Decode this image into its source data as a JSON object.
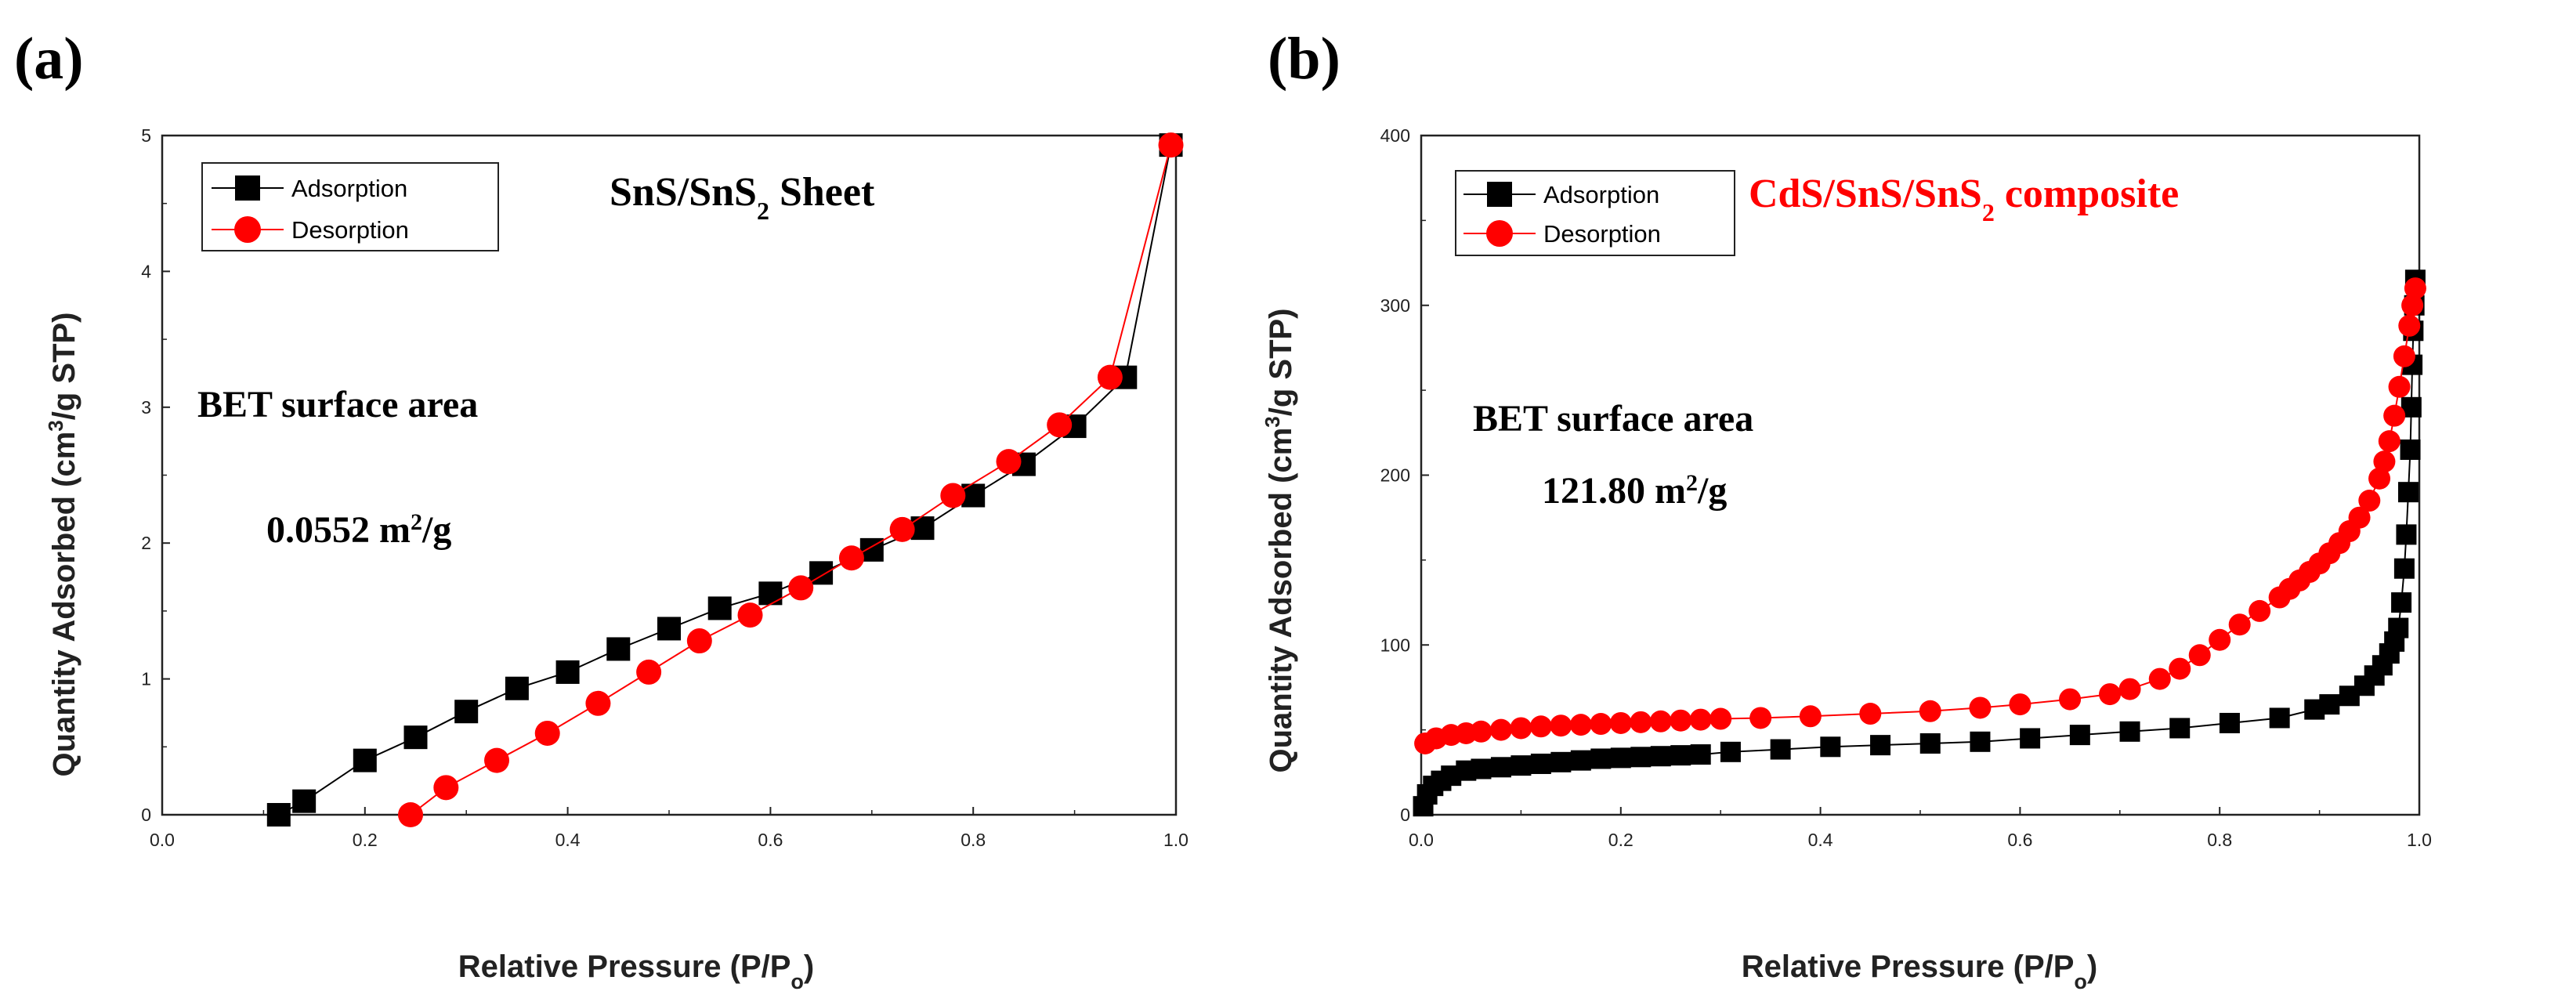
{
  "colors": {
    "adsorption": "#000000",
    "desorption": "#ff0000",
    "axis": "#222222"
  },
  "chart_data": [
    {
      "panel_label": "(a)",
      "type": "line",
      "title": "SnS/SnS2 Sheet",
      "title_main": "SnS/SnS",
      "title_sub": "2",
      "title_rest": " Sheet",
      "title_color": "#000000",
      "xlabel": "Relative Pressure (P/Po)",
      "xlabel_main": "Relative Pressure (P/P",
      "xlabel_sub": "o",
      "xlabel_end": ")",
      "ylabel": "Quantity Adsorbed (cm3/g STP)",
      "ylabel_main": "Quantity Adsorbed (cm",
      "ylabel_sup": "3",
      "ylabel_end": "/g STP)",
      "xlim": [
        0.0,
        1.0
      ],
      "ylim": [
        0,
        5
      ],
      "xticks": [
        "0.0",
        "0.2",
        "0.4",
        "0.6",
        "0.8",
        "1.0"
      ],
      "yticks": [
        "0",
        "1",
        "2",
        "3",
        "4",
        "5"
      ],
      "legend": [
        "Adsorption",
        "Desorption"
      ],
      "legend_position": "top-left",
      "annotation_line1": "BET surface area",
      "annotation_value": "0.0552 m",
      "annotation_sup": "2",
      "annotation_unit": "/g",
      "annotation_value_color": "#000000",
      "series": [
        {
          "name": "Adsorption",
          "x": [
            0.115,
            0.14,
            0.2,
            0.25,
            0.3,
            0.35,
            0.4,
            0.45,
            0.5,
            0.55,
            0.6,
            0.65,
            0.7,
            0.75,
            0.8,
            0.85,
            0.9,
            0.95,
            0.995
          ],
          "y": [
            0.0,
            0.1,
            0.4,
            0.57,
            0.76,
            0.93,
            1.05,
            1.22,
            1.37,
            1.52,
            1.63,
            1.78,
            1.95,
            2.11,
            2.35,
            2.58,
            2.86,
            3.22,
            4.93
          ]
        },
        {
          "name": "Desorption",
          "x": [
            0.245,
            0.28,
            0.33,
            0.38,
            0.43,
            0.48,
            0.53,
            0.58,
            0.63,
            0.68,
            0.73,
            0.78,
            0.835,
            0.885,
            0.935,
            0.995
          ],
          "y": [
            0.0,
            0.2,
            0.4,
            0.6,
            0.82,
            1.05,
            1.28,
            1.47,
            1.67,
            1.89,
            2.1,
            2.35,
            2.6,
            2.87,
            3.22,
            4.93
          ]
        }
      ]
    },
    {
      "panel_label": "(b)",
      "type": "line",
      "title": "CdS/SnS/SnS2 composite",
      "title_main": "CdS/SnS/SnS",
      "title_sub": "2",
      "title_rest": " composite",
      "title_color": "#ff0000",
      "xlabel": "Relative Pressure (P/Po)",
      "xlabel_main": "Relative Pressure (P/P",
      "xlabel_sub": "o",
      "xlabel_end": ")",
      "ylabel": "Quantity Adsorbed (cm3/g STP)",
      "ylabel_main": "Quantity Adsorbed (cm",
      "ylabel_sup": "3",
      "ylabel_end": "/g STP)",
      "xlim": [
        0.0,
        1.0
      ],
      "ylim": [
        0,
        400
      ],
      "xticks": [
        "0.0",
        "0.2",
        "0.4",
        "0.6",
        "0.8",
        "1.0"
      ],
      "yticks": [
        "0",
        "100",
        "200",
        "300",
        "400"
      ],
      "legend": [
        "Adsorption",
        "Desorption"
      ],
      "legend_position": "top-left",
      "annotation_line1": "BET surface area",
      "annotation_value": "121.80 m",
      "annotation_sup": "2",
      "annotation_unit": "/g",
      "annotation_value_color": "#ff0000",
      "series": [
        {
          "name": "Adsorption",
          "x": [
            0.002,
            0.006,
            0.012,
            0.02,
            0.03,
            0.045,
            0.06,
            0.08,
            0.1,
            0.12,
            0.14,
            0.16,
            0.18,
            0.2,
            0.22,
            0.24,
            0.26,
            0.28,
            0.31,
            0.36,
            0.41,
            0.46,
            0.51,
            0.56,
            0.61,
            0.66,
            0.71,
            0.76,
            0.81,
            0.86,
            0.895,
            0.91,
            0.93,
            0.945,
            0.955,
            0.963,
            0.97,
            0.975,
            0.979,
            0.982,
            0.985,
            0.987,
            0.989,
            0.991,
            0.992,
            0.993,
            0.994,
            0.995,
            0.996
          ],
          "y": [
            5,
            12,
            17,
            20,
            23,
            26,
            27,
            28,
            29,
            30,
            31,
            32,
            33,
            33.5,
            34,
            34.5,
            35,
            35.5,
            37,
            38.5,
            40,
            41,
            42,
            43,
            45,
            47,
            49,
            51,
            54,
            57,
            62,
            65,
            70,
            76,
            82,
            88,
            95,
            102,
            110,
            125,
            145,
            165,
            190,
            215,
            240,
            265,
            285,
            300,
            315
          ]
        },
        {
          "name": "Desorption",
          "x": [
            0.004,
            0.015,
            0.03,
            0.045,
            0.06,
            0.08,
            0.1,
            0.12,
            0.14,
            0.16,
            0.18,
            0.2,
            0.22,
            0.24,
            0.26,
            0.28,
            0.3,
            0.34,
            0.39,
            0.45,
            0.51,
            0.56,
            0.6,
            0.65,
            0.69,
            0.71,
            0.74,
            0.76,
            0.78,
            0.8,
            0.82,
            0.84,
            0.86,
            0.87,
            0.88,
            0.89,
            0.9,
            0.91,
            0.92,
            0.93,
            0.94,
            0.95,
            0.96,
            0.965,
            0.97,
            0.975,
            0.98,
            0.985,
            0.99,
            0.993,
            0.996
          ],
          "y": [
            42,
            45,
            47,
            48,
            49,
            50,
            51,
            52,
            52.5,
            53,
            53.5,
            54,
            54.5,
            55,
            55.5,
            56,
            56.5,
            57,
            58,
            59.5,
            61,
            63,
            65,
            68,
            71,
            74,
            80,
            86,
            94,
            103,
            112,
            120,
            128,
            133,
            138,
            143,
            148,
            154,
            160,
            167,
            175,
            185,
            198,
            208,
            220,
            235,
            252,
            270,
            288,
            300,
            310
          ]
        }
      ]
    }
  ]
}
